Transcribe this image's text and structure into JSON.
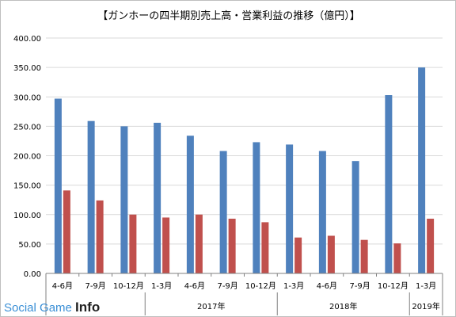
{
  "chart_data": {
    "type": "bar",
    "title": "【ガンホーの四半期別売上高・営業利益の推移（億円）】",
    "categories": [
      "4-6月",
      "7-9月",
      "10-12月",
      "1-3月",
      "4-6月",
      "7-9月",
      "10-12月",
      "1-3月",
      "4-6月",
      "7-9月",
      "10-12月",
      "1-3月"
    ],
    "year_groups": [
      {
        "label": "",
        "start": 0,
        "end": 2
      },
      {
        "label": "2017年",
        "start": 3,
        "end": 6
      },
      {
        "label": "2018年",
        "start": 7,
        "end": 10
      },
      {
        "label": "2019年",
        "start": 11,
        "end": 11
      }
    ],
    "series": [
      {
        "values": [
          297,
          259,
          250,
          256,
          234,
          208,
          223,
          219,
          208,
          191,
          303,
          350
        ],
        "color": "#4f81bd"
      },
      {
        "values": [
          141,
          124,
          100,
          95,
          100,
          93,
          87,
          61,
          64,
          57,
          51,
          93
        ],
        "color": "#c0504d"
      }
    ],
    "ylim": [
      0,
      400
    ],
    "yticks": [
      "0.00",
      "50.00",
      "100.00",
      "150.00",
      "200.00",
      "250.00",
      "300.00",
      "350.00",
      "400.00"
    ],
    "grid": true,
    "xlabel": "",
    "ylabel": ""
  },
  "watermark": {
    "part1": "Social Game ",
    "part2": "Info"
  }
}
